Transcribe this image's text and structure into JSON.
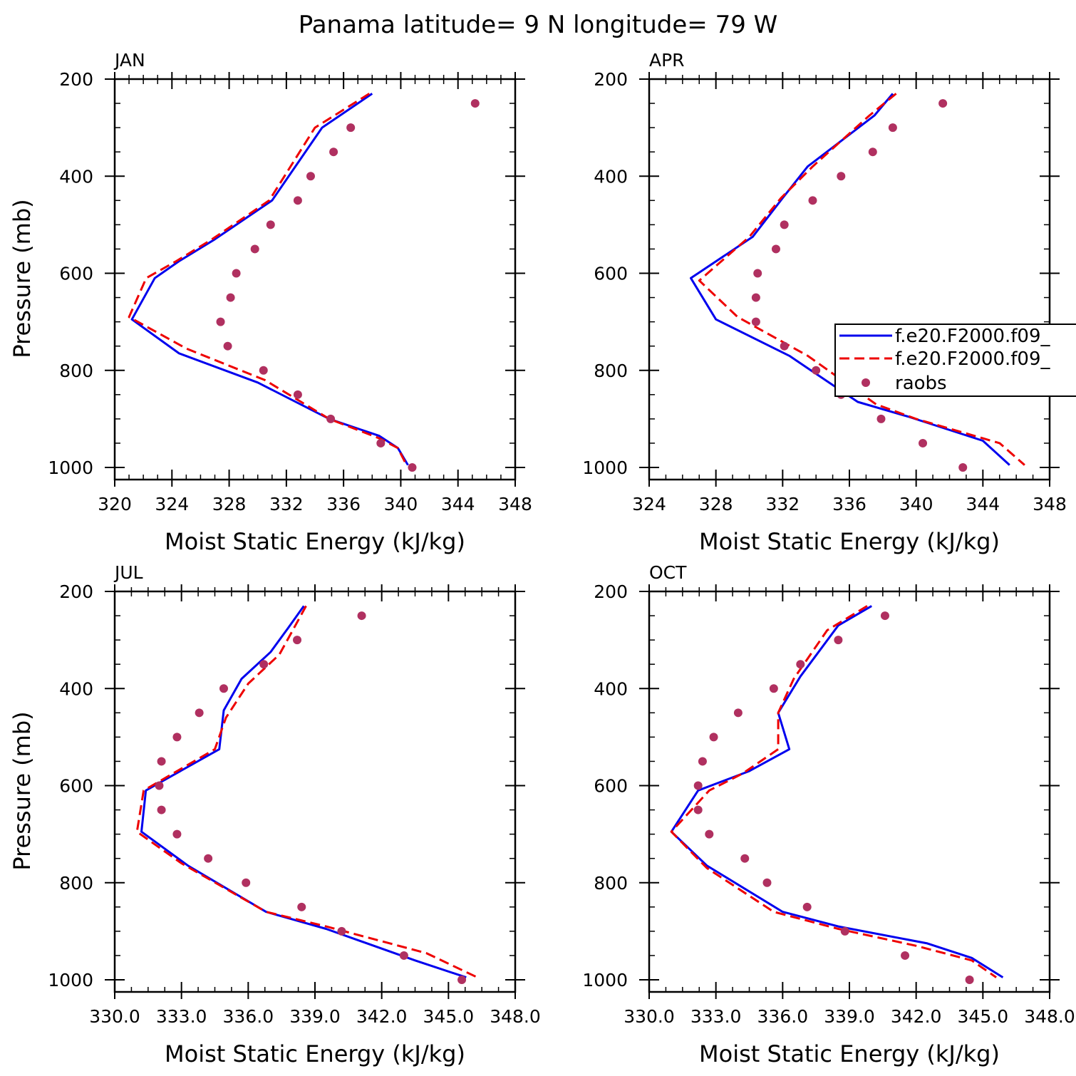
{
  "title": "Panama  latitude= 9 N longitude= 79 W",
  "legend": {
    "placement": "right edge of APR panel (clipped)",
    "entries": [
      "f.e20.F2000.f09_",
      "f.e20.F2000.f09_",
      "raobs"
    ]
  },
  "colors": {
    "model_solid": "#0000ee",
    "model_dashed": "#ee0000",
    "raobs": "#b03060"
  },
  "chart_data": [
    {
      "type": "line",
      "panel": "JAN",
      "xlabel": "Moist Static Energy (kJ/kg)",
      "ylabel": "Pressure (mb)",
      "xlim": [
        320,
        348
      ],
      "ylim": [
        1000,
        200
      ],
      "x_ticks": [
        "320",
        "324",
        "328",
        "332",
        "336",
        "340",
        "344",
        "348"
      ],
      "y_ticks": [
        "200",
        "400",
        "600",
        "800",
        "1000"
      ],
      "series": [
        {
          "style": "solid",
          "points": [
            [
              338.0,
              230
            ],
            [
              334.5,
              300
            ],
            [
              331.0,
              450
            ],
            [
              327.0,
              530
            ],
            [
              324.5,
              575
            ],
            [
              322.8,
              610
            ],
            [
              321.2,
              695
            ],
            [
              324.5,
              765
            ],
            [
              330.0,
              825
            ],
            [
              335.0,
              900
            ],
            [
              338.5,
              935
            ],
            [
              339.8,
              960
            ],
            [
              340.5,
              995
            ]
          ]
        },
        {
          "style": "dashed",
          "points": [
            [
              337.8,
              230
            ],
            [
              334.0,
              300
            ],
            [
              330.8,
              450
            ],
            [
              326.8,
              530
            ],
            [
              324.3,
              575
            ],
            [
              322.2,
              610
            ],
            [
              321.0,
              690
            ],
            [
              325.0,
              755
            ],
            [
              330.5,
              820
            ],
            [
              335.0,
              900
            ],
            [
              338.5,
              940
            ],
            [
              339.8,
              960
            ],
            [
              340.4,
              995
            ]
          ]
        },
        {
          "style": "markers",
          "name": "raobs",
          "points": [
            [
              345.2,
              250
            ],
            [
              336.5,
              300
            ],
            [
              335.3,
              350
            ],
            [
              333.7,
              400
            ],
            [
              332.8,
              450
            ],
            [
              330.9,
              500
            ],
            [
              329.8,
              550
            ],
            [
              328.5,
              600
            ],
            [
              328.1,
              650
            ],
            [
              327.4,
              700
            ],
            [
              327.9,
              750
            ],
            [
              330.4,
              800
            ],
            [
              332.8,
              850
            ],
            [
              335.1,
              900
            ],
            [
              338.6,
              950
            ],
            [
              340.8,
              1000
            ]
          ]
        }
      ]
    },
    {
      "type": "line",
      "panel": "APR",
      "xlabel": "Moist Static Energy (kJ/kg)",
      "ylabel": "Pressure (mb)",
      "xlim": [
        324,
        348
      ],
      "ylim": [
        1000,
        200
      ],
      "x_ticks": [
        "324",
        "328",
        "332",
        "336",
        "340",
        "344",
        "348"
      ],
      "y_ticks": [
        "200",
        "400",
        "600",
        "800",
        "1000"
      ],
      "series": [
        {
          "style": "solid",
          "points": [
            [
              338.6,
              230
            ],
            [
              337.5,
              275
            ],
            [
              333.5,
              380
            ],
            [
              332.0,
              445
            ],
            [
              330.2,
              525
            ],
            [
              326.5,
              610
            ],
            [
              328.0,
              695
            ],
            [
              332.4,
              770
            ],
            [
              336.5,
              865
            ],
            [
              339.5,
              895
            ],
            [
              344.0,
              945
            ],
            [
              345.6,
              995
            ]
          ]
        },
        {
          "style": "dashed",
          "points": [
            [
              338.8,
              230
            ],
            [
              337.2,
              275
            ],
            [
              333.8,
              380
            ],
            [
              331.9,
              445
            ],
            [
              330.0,
              525
            ],
            [
              327.0,
              615
            ],
            [
              329.3,
              690
            ],
            [
              333.5,
              770
            ],
            [
              337.6,
              870
            ],
            [
              340.0,
              900
            ],
            [
              345.0,
              950
            ],
            [
              346.5,
              995
            ]
          ]
        },
        {
          "style": "markers",
          "name": "raobs",
          "points": [
            [
              341.6,
              250
            ],
            [
              338.6,
              300
            ],
            [
              337.4,
              350
            ],
            [
              335.5,
              400
            ],
            [
              333.8,
              450
            ],
            [
              332.1,
              500
            ],
            [
              331.6,
              550
            ],
            [
              330.5,
              600
            ],
            [
              330.4,
              650
            ],
            [
              330.4,
              700
            ],
            [
              332.1,
              750
            ],
            [
              334.0,
              800
            ],
            [
              335.5,
              850
            ],
            [
              337.9,
              900
            ],
            [
              340.4,
              950
            ],
            [
              342.8,
              1000
            ]
          ]
        }
      ]
    },
    {
      "type": "line",
      "panel": "JUL",
      "xlabel": "Moist Static Energy (kJ/kg)",
      "ylabel": "Pressure (mb)",
      "xlim": [
        330.0,
        348.0
      ],
      "ylim": [
        1000,
        200
      ],
      "x_ticks": [
        "330.0",
        "333.0",
        "336.0",
        "339.0",
        "342.0",
        "345.0",
        "348.0"
      ],
      "y_ticks": [
        "200",
        "400",
        "600",
        "800",
        "1000"
      ],
      "series": [
        {
          "style": "solid",
          "points": [
            [
              338.5,
              230
            ],
            [
              337.8,
              275
            ],
            [
              337.0,
              325
            ],
            [
              335.7,
              380
            ],
            [
              334.9,
              445
            ],
            [
              334.7,
              525
            ],
            [
              331.4,
              610
            ],
            [
              331.2,
              695
            ],
            [
              333.3,
              765
            ],
            [
              336.8,
              860
            ],
            [
              339.5,
              895
            ],
            [
              343.5,
              960
            ],
            [
              345.8,
              995
            ]
          ]
        },
        {
          "style": "dashed",
          "points": [
            [
              338.6,
              230
            ],
            [
              338.0,
              280
            ],
            [
              337.4,
              330
            ],
            [
              336.0,
              390
            ],
            [
              335.0,
              460
            ],
            [
              334.5,
              525
            ],
            [
              331.3,
              610
            ],
            [
              331.0,
              695
            ],
            [
              333.0,
              760
            ],
            [
              336.8,
              860
            ],
            [
              339.5,
              890
            ],
            [
              344.0,
              945
            ],
            [
              346.3,
              995
            ]
          ]
        },
        {
          "style": "markers",
          "name": "raobs",
          "points": [
            [
              341.1,
              250
            ],
            [
              338.2,
              300
            ],
            [
              336.7,
              350
            ],
            [
              334.9,
              400
            ],
            [
              333.8,
              450
            ],
            [
              332.8,
              500
            ],
            [
              332.1,
              550
            ],
            [
              332.0,
              600
            ],
            [
              332.1,
              650
            ],
            [
              332.8,
              700
            ],
            [
              334.2,
              750
            ],
            [
              335.9,
              800
            ],
            [
              338.4,
              850
            ],
            [
              340.2,
              900
            ],
            [
              343.0,
              950
            ],
            [
              345.6,
              1000
            ]
          ]
        }
      ]
    },
    {
      "type": "line",
      "panel": "OCT",
      "xlabel": "Moist Static Energy (kJ/kg)",
      "ylabel": "Pressure (mb)",
      "xlim": [
        330.0,
        348.0
      ],
      "ylim": [
        1000,
        200
      ],
      "x_ticks": [
        "330.0",
        "333.0",
        "336.0",
        "339.0",
        "342.0",
        "345.0",
        "348.0"
      ],
      "y_ticks": [
        "200",
        "400",
        "600",
        "800",
        "1000"
      ],
      "series": [
        {
          "style": "solid",
          "points": [
            [
              340.0,
              230
            ],
            [
              338.5,
              270
            ],
            [
              336.8,
              375
            ],
            [
              335.8,
              450
            ],
            [
              336.3,
              525
            ],
            [
              334.5,
              570
            ],
            [
              332.2,
              610
            ],
            [
              331.0,
              695
            ],
            [
              332.6,
              765
            ],
            [
              336.0,
              860
            ],
            [
              338.5,
              890
            ],
            [
              342.5,
              925
            ],
            [
              344.5,
              955
            ],
            [
              345.9,
              995
            ]
          ]
        },
        {
          "style": "dashed",
          "points": [
            [
              339.8,
              230
            ],
            [
              338.0,
              280
            ],
            [
              336.5,
              380
            ],
            [
              335.8,
              450
            ],
            [
              335.8,
              525
            ],
            [
              334.2,
              575
            ],
            [
              332.7,
              610
            ],
            [
              331.0,
              695
            ],
            [
              332.6,
              770
            ],
            [
              335.6,
              860
            ],
            [
              338.5,
              895
            ],
            [
              342.0,
              930
            ],
            [
              344.5,
              960
            ],
            [
              345.6,
              995
            ]
          ]
        },
        {
          "style": "markers",
          "name": "raobs",
          "points": [
            [
              340.6,
              250
            ],
            [
              338.5,
              300
            ],
            [
              336.8,
              350
            ],
            [
              335.6,
              400
            ],
            [
              334.0,
              450
            ],
            [
              332.9,
              500
            ],
            [
              332.4,
              550
            ],
            [
              332.2,
              600
            ],
            [
              332.2,
              650
            ],
            [
              332.7,
              700
            ],
            [
              334.3,
              750
            ],
            [
              335.3,
              800
            ],
            [
              337.1,
              850
            ],
            [
              338.8,
              900
            ],
            [
              341.5,
              950
            ],
            [
              344.4,
              1000
            ]
          ]
        }
      ]
    }
  ]
}
